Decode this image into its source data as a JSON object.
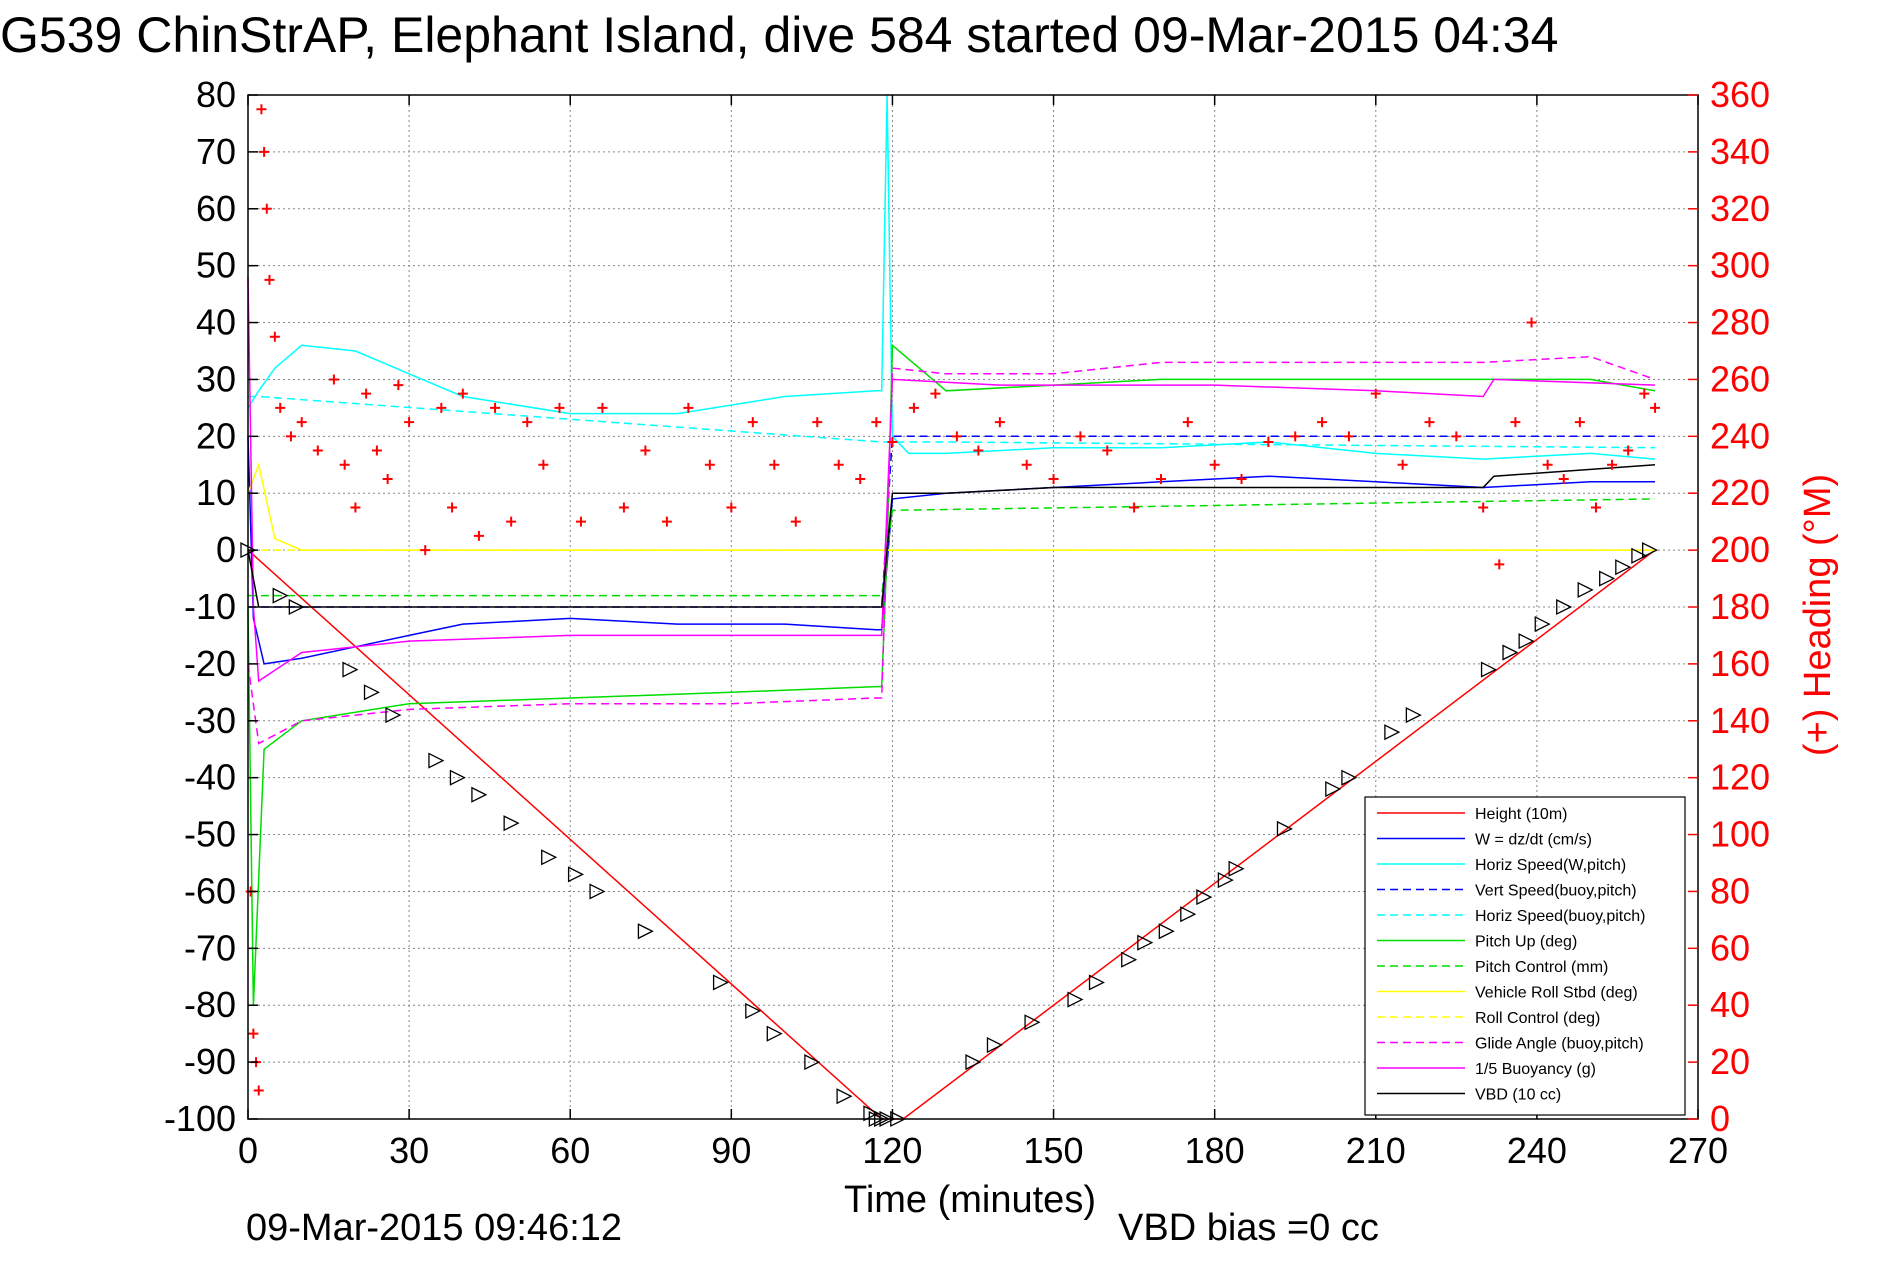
{
  "chart_data": {
    "type": "line",
    "title": "G539 ChinStrAP, Elephant Island, dive 584 started 09-Mar-2015 04:34",
    "xlabel": "Time (minutes)",
    "ylabel_right": "(+) Heading (°M)",
    "footer_left": "09-Mar-2015 09:46:12",
    "footer_right": "VBD bias =0 cc",
    "xlim": [
      0,
      270
    ],
    "ylim": [
      -100,
      80
    ],
    "ylim_right": [
      0,
      360
    ],
    "xticks": [
      0,
      30,
      60,
      90,
      120,
      150,
      180,
      210,
      240,
      270
    ],
    "yticks": [
      -100,
      -90,
      -80,
      -70,
      -60,
      -50,
      -40,
      -30,
      -20,
      -10,
      0,
      10,
      20,
      30,
      40,
      50,
      60,
      70,
      80
    ],
    "yticks_right": [
      0,
      20,
      40,
      60,
      80,
      100,
      120,
      140,
      160,
      180,
      200,
      220,
      240,
      260,
      280,
      300,
      320,
      340,
      360
    ],
    "grid": true,
    "legend_position": "bottom-right",
    "colors": {
      "red": "#ff0000",
      "blue": "#0000ff",
      "cyan": "#00ffff",
      "green": "#00dd00",
      "yellow": "#ffff00",
      "magenta": "#ff00ff",
      "black": "#000000"
    },
    "series": [
      {
        "name": "Height (10m)",
        "color": "#ff0000",
        "style": "solid",
        "x": [
          0,
          118,
          122,
          262
        ],
        "y": [
          0,
          -100,
          -100,
          0
        ]
      },
      {
        "name": "W = dz/dt (cm/s)",
        "color": "#0000ff",
        "style": "solid",
        "x": [
          0,
          1,
          3,
          10,
          20,
          30,
          40,
          60,
          80,
          100,
          117,
          118,
          120,
          130,
          150,
          170,
          190,
          210,
          230,
          250,
          262
        ],
        "y": [
          20,
          -12,
          -20,
          -19,
          -17,
          -15,
          -13,
          -12,
          -13,
          -13,
          -14,
          -14,
          9,
          10,
          11,
          12,
          13,
          12,
          11,
          12,
          12
        ]
      },
      {
        "name": "Horiz Speed(W,pitch)",
        "color": "#00ffff",
        "style": "solid",
        "x": [
          0,
          2,
          5,
          10,
          20,
          30,
          40,
          60,
          80,
          100,
          117,
          118,
          119,
          120,
          123,
          130,
          150,
          170,
          190,
          210,
          230,
          250,
          262
        ],
        "y": [
          25,
          28,
          32,
          36,
          35,
          31,
          27,
          24,
          24,
          27,
          28,
          28,
          80,
          20,
          17,
          17,
          18,
          18,
          19,
          17,
          16,
          17,
          16
        ]
      },
      {
        "name": "Vert Speed(buoy,pitch)",
        "color": "#0000ff",
        "style": "dashed",
        "x": [
          0,
          2,
          118,
          120,
          130,
          262
        ],
        "y": [
          -10,
          -10,
          -10,
          20,
          20,
          20
        ]
      },
      {
        "name": "Horiz Speed(buoy,pitch)",
        "color": "#00ffff",
        "style": "dashed",
        "x": [
          0,
          2,
          118,
          120,
          130,
          262
        ],
        "y": [
          27,
          27,
          19,
          19,
          19,
          18
        ]
      },
      {
        "name": "Pitch Up (deg)",
        "color": "#00dd00",
        "style": "solid",
        "x": [
          0,
          1,
          3,
          10,
          30,
          60,
          90,
          117,
          118,
          119,
          120,
          130,
          150,
          170,
          190,
          210,
          230,
          250,
          262
        ],
        "y": [
          -10,
          -80,
          -35,
          -30,
          -27,
          -26,
          -25,
          -24,
          -24,
          0,
          36,
          28,
          29,
          30,
          30,
          30,
          30,
          30,
          28
        ]
      },
      {
        "name": "Pitch Control (mm)",
        "color": "#00dd00",
        "style": "dashed",
        "x": [
          0,
          2,
          118,
          120,
          262
        ],
        "y": [
          -8,
          -8,
          -8,
          7,
          9
        ]
      },
      {
        "name": "Vehicle Roll Stbd (deg)",
        "color": "#ffff00",
        "style": "solid",
        "x": [
          0,
          2,
          5,
          10,
          20,
          40,
          60,
          80,
          100,
          118,
          120,
          140,
          160,
          180,
          200,
          220,
          240,
          262
        ],
        "y": [
          10,
          15,
          2,
          0,
          0,
          0,
          0,
          0,
          0,
          0,
          0,
          0,
          0,
          0,
          0,
          0,
          0,
          0
        ]
      },
      {
        "name": "Roll Control (deg)",
        "color": "#ffff00",
        "style": "dashed",
        "x": [
          0,
          262
        ],
        "y": [
          0,
          0
        ]
      },
      {
        "name": "Glide Angle (buoy,pitch)",
        "color": "#ff00ff",
        "style": "dashed",
        "x": [
          0,
          2,
          10,
          30,
          60,
          90,
          117,
          118,
          120,
          130,
          150,
          170,
          190,
          210,
          230,
          250,
          262
        ],
        "y": [
          -20,
          -34,
          -30,
          -28,
          -27,
          -27,
          -26,
          -26,
          32,
          31,
          31,
          33,
          33,
          33,
          33,
          34,
          30
        ]
      },
      {
        "name": "1/5 Buoyancy (g)",
        "color": "#ff00ff",
        "style": "solid",
        "x": [
          0,
          1,
          2,
          10,
          30,
          60,
          90,
          118,
          120,
          140,
          160,
          180,
          210,
          230,
          232,
          262
        ],
        "y": [
          48,
          -10,
          -23,
          -18,
          -16,
          -15,
          -15,
          -15,
          30,
          29,
          29,
          29,
          28,
          27,
          30,
          29
        ]
      },
      {
        "name": "VBD (10 cc)",
        "color": "#000000",
        "style": "solid",
        "x": [
          0,
          2,
          118,
          120,
          130,
          150,
          180,
          210,
          230,
          232,
          262
        ],
        "y": [
          0,
          -10,
          -10,
          10,
          10,
          11,
          11,
          11,
          11,
          13,
          15
        ]
      }
    ],
    "heading_markers": {
      "axis": "right",
      "symbol": "+",
      "color": "#ff0000",
      "x": [
        0.5,
        1,
        1.5,
        2,
        2.5,
        3,
        3.5,
        4,
        5,
        6,
        8,
        10,
        13,
        16,
        18,
        20,
        22,
        24,
        26,
        28,
        30,
        33,
        36,
        38,
        40,
        43,
        46,
        49,
        52,
        55,
        58,
        62,
        66,
        70,
        74,
        78,
        82,
        86,
        90,
        94,
        98,
        102,
        106,
        110,
        114,
        117,
        120,
        124,
        128,
        132,
        136,
        140,
        145,
        150,
        155,
        160,
        165,
        170,
        175,
        180,
        185,
        190,
        195,
        200,
        205,
        210,
        215,
        220,
        225,
        230,
        233,
        236,
        239,
        242,
        245,
        248,
        251,
        254,
        257,
        260,
        262
      ],
      "y": [
        80,
        30,
        20,
        10,
        355,
        340,
        320,
        295,
        275,
        250,
        240,
        245,
        235,
        260,
        230,
        215,
        255,
        235,
        225,
        258,
        245,
        200,
        250,
        215,
        255,
        205,
        250,
        210,
        245,
        230,
        250,
        210,
        250,
        215,
        235,
        210,
        250,
        230,
        215,
        245,
        230,
        210,
        245,
        230,
        225,
        245,
        238,
        250,
        255,
        240,
        235,
        245,
        230,
        225,
        240,
        235,
        215,
        225,
        245,
        230,
        225,
        238,
        240,
        245,
        240,
        255,
        230,
        245,
        240,
        215,
        195,
        245,
        280,
        230,
        225,
        245,
        215,
        230,
        235,
        255,
        250
      ]
    },
    "descent_ascent_markers": {
      "symbol": "triangle",
      "color": "#000000",
      "x": [
        0,
        6,
        9,
        19,
        23,
        27,
        35,
        39,
        43,
        49,
        56,
        61,
        65,
        74,
        88,
        94,
        98,
        105,
        111,
        116,
        117,
        118,
        119,
        121,
        135,
        139,
        146,
        154,
        158,
        164,
        167,
        171,
        175,
        178,
        182,
        184,
        193,
        202,
        205,
        213,
        217,
        231,
        235,
        238,
        241,
        245,
        249,
        253,
        256,
        259,
        261
      ],
      "y": [
        0,
        -8,
        -10,
        -21,
        -25,
        -29,
        -37,
        -40,
        -43,
        -48,
        -54,
        -57,
        -60,
        -67,
        -76,
        -81,
        -85,
        -90,
        -96,
        -99,
        -100,
        -100,
        -100,
        -100,
        -90,
        -87,
        -83,
        -79,
        -76,
        -72,
        -69,
        -67,
        -64,
        -61,
        -58,
        -56,
        -49,
        -42,
        -40,
        -32,
        -29,
        -21,
        -18,
        -16,
        -13,
        -10,
        -7,
        -5,
        -3,
        -1,
        0
      ]
    }
  }
}
